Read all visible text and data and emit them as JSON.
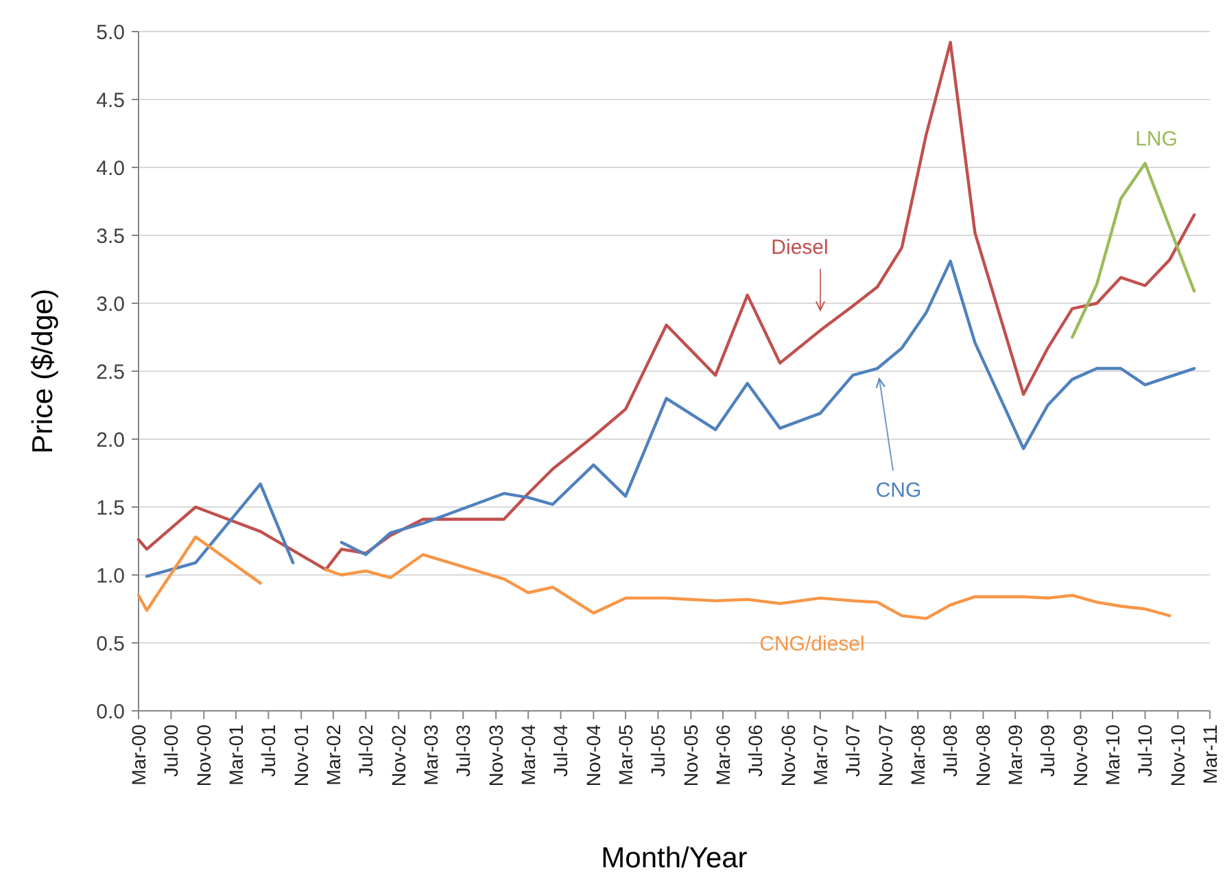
{
  "chart_data": {
    "type": "line",
    "xlabel": "Month/Year",
    "ylabel": "Price ($/dge)",
    "xlim": [
      "2000-03",
      "2011-03"
    ],
    "xticks": [
      {
        "value": "2000-03",
        "label": "Mar-00"
      },
      {
        "value": "2000-07",
        "label": "Jul-00"
      },
      {
        "value": "2000-11",
        "label": "Nov-00"
      },
      {
        "value": "2001-03",
        "label": "Mar-01"
      },
      {
        "value": "2001-07",
        "label": "Jul-01"
      },
      {
        "value": "2001-11",
        "label": "Nov-01"
      },
      {
        "value": "2002-03",
        "label": "Mar-02"
      },
      {
        "value": "2002-07",
        "label": "Jul-02"
      },
      {
        "value": "2002-11",
        "label": "Nov-02"
      },
      {
        "value": "2003-03",
        "label": "Mar-03"
      },
      {
        "value": "2003-07",
        "label": "Jul-03"
      },
      {
        "value": "2003-11",
        "label": "Nov-03"
      },
      {
        "value": "2004-03",
        "label": "Mar-04"
      },
      {
        "value": "2004-07",
        "label": "Jul-04"
      },
      {
        "value": "2004-11",
        "label": "Nov-04"
      },
      {
        "value": "2005-03",
        "label": "Mar-05"
      },
      {
        "value": "2005-07",
        "label": "Jul-05"
      },
      {
        "value": "2005-11",
        "label": "Nov-05"
      },
      {
        "value": "2006-03",
        "label": "Mar-06"
      },
      {
        "value": "2006-07",
        "label": "Jul-06"
      },
      {
        "value": "2006-11",
        "label": "Nov-06"
      },
      {
        "value": "2007-03",
        "label": "Mar-07"
      },
      {
        "value": "2007-07",
        "label": "Jul-07"
      },
      {
        "value": "2007-11",
        "label": "Nov-07"
      },
      {
        "value": "2008-03",
        "label": "Mar-08"
      },
      {
        "value": "2008-07",
        "label": "Jul-08"
      },
      {
        "value": "2008-11",
        "label": "Nov-08"
      },
      {
        "value": "2009-03",
        "label": "Mar-09"
      },
      {
        "value": "2009-07",
        "label": "Jul-09"
      },
      {
        "value": "2009-11",
        "label": "Nov-09"
      },
      {
        "value": "2010-03",
        "label": "Mar-10"
      },
      {
        "value": "2010-07",
        "label": "Jul-10"
      },
      {
        "value": "2010-11",
        "label": "Nov-10"
      },
      {
        "value": "2011-03",
        "label": "Mar-11"
      }
    ],
    "ylim": [
      0,
      5
    ],
    "yticks": [
      {
        "value": 0,
        "label": "0.0"
      },
      0.5,
      {
        "value": 1,
        "label": "1.0"
      },
      1.5,
      {
        "value": 2,
        "label": "2.0"
      },
      2.5,
      {
        "value": 3,
        "label": "3.0"
      },
      3.5,
      {
        "value": 4,
        "label": "4.0"
      },
      4.5,
      {
        "value": 5,
        "label": "5.0"
      }
    ],
    "grid": "y",
    "marker": "none",
    "line_style": "solid",
    "series": [
      {
        "name": "Diesel",
        "color": "#c0504d",
        "x": [
          "2000-03",
          "2000-04",
          "2000-10",
          "2001-06",
          "2002-02",
          "2002-04",
          "2002-07",
          "2002-10",
          "2003-02",
          "2003-12",
          "2004-03",
          "2004-06",
          "2004-11",
          "2005-03",
          "2005-08",
          "2006-02",
          "2006-06",
          "2006-10",
          "2007-03",
          "2007-07",
          "2007-10",
          "2008-01",
          "2008-04",
          "2008-07",
          "2008-10",
          "2009-04",
          "2009-07",
          "2009-10",
          "2010-01",
          "2010-04",
          "2010-07",
          "2010-10",
          "2011-01"
        ],
        "values": [
          1.26,
          1.19,
          1.5,
          1.32,
          1.04,
          1.19,
          1.16,
          1.29,
          1.41,
          1.41,
          1.6,
          1.78,
          2.02,
          2.22,
          2.84,
          2.47,
          3.06,
          2.56,
          2.8,
          2.98,
          3.12,
          3.41,
          4.24,
          4.92,
          3.52,
          2.33,
          2.67,
          2.96,
          3.0,
          3.19,
          3.13,
          3.32,
          3.65
        ]
      },
      {
        "name": "CNG",
        "color": "#4f81bd",
        "x": [
          "2000-04",
          "2000-10",
          "2001-06",
          "2001-10",
          "2002-01",
          "2002-04",
          "2002-07",
          "2002-10",
          "2003-02",
          "2003-12",
          "2004-03",
          "2004-06",
          "2004-11",
          "2005-03",
          "2005-08",
          "2006-02",
          "2006-06",
          "2006-10",
          "2007-03",
          "2007-07",
          "2007-10",
          "2008-01",
          "2008-04",
          "2008-07",
          "2008-10",
          "2009-04",
          "2009-07",
          "2009-10",
          "2010-01",
          "2010-04",
          "2010-07",
          "2010-10",
          "2011-01"
        ],
        "values": [
          0.99,
          1.09,
          1.67,
          1.09,
          null,
          1.24,
          1.15,
          1.31,
          1.38,
          1.6,
          1.57,
          1.52,
          1.81,
          1.58,
          2.3,
          2.07,
          2.41,
          2.08,
          2.19,
          2.47,
          2.52,
          2.67,
          2.93,
          3.31,
          2.71,
          1.93,
          2.25,
          2.44,
          2.52,
          2.52,
          2.4,
          2.46,
          2.52
        ]
      },
      {
        "name": "CNG/diesel",
        "color": "#f79646",
        "x": [
          "2000-03",
          "2000-04",
          "2000-10",
          "2001-06",
          "2001-10",
          "2002-02",
          "2002-04",
          "2002-07",
          "2002-10",
          "2003-02",
          "2003-12",
          "2004-03",
          "2004-06",
          "2004-11",
          "2005-03",
          "2005-08",
          "2006-02",
          "2006-06",
          "2006-10",
          "2007-03",
          "2007-07",
          "2007-10",
          "2008-01",
          "2008-04",
          "2008-07",
          "2008-10",
          "2009-04",
          "2009-07",
          "2009-10",
          "2010-01",
          "2010-04",
          "2010-07",
          "2010-10"
        ],
        "values": [
          0.85,
          0.74,
          1.28,
          0.94,
          null,
          1.04,
          1.0,
          1.03,
          0.98,
          1.15,
          0.97,
          0.87,
          0.91,
          0.72,
          0.83,
          0.83,
          0.81,
          0.82,
          0.79,
          0.83,
          0.81,
          0.8,
          0.7,
          0.68,
          0.78,
          0.84,
          0.84,
          0.83,
          0.85,
          0.8,
          0.77,
          0.75,
          0.7
        ]
      },
      {
        "name": "LNG",
        "color": "#9bbb59",
        "x": [
          "2009-10",
          "2010-01",
          "2010-04",
          "2010-07",
          "2011-01"
        ],
        "values": [
          2.75,
          3.14,
          3.77,
          4.03,
          3.09
        ]
      }
    ]
  }
}
